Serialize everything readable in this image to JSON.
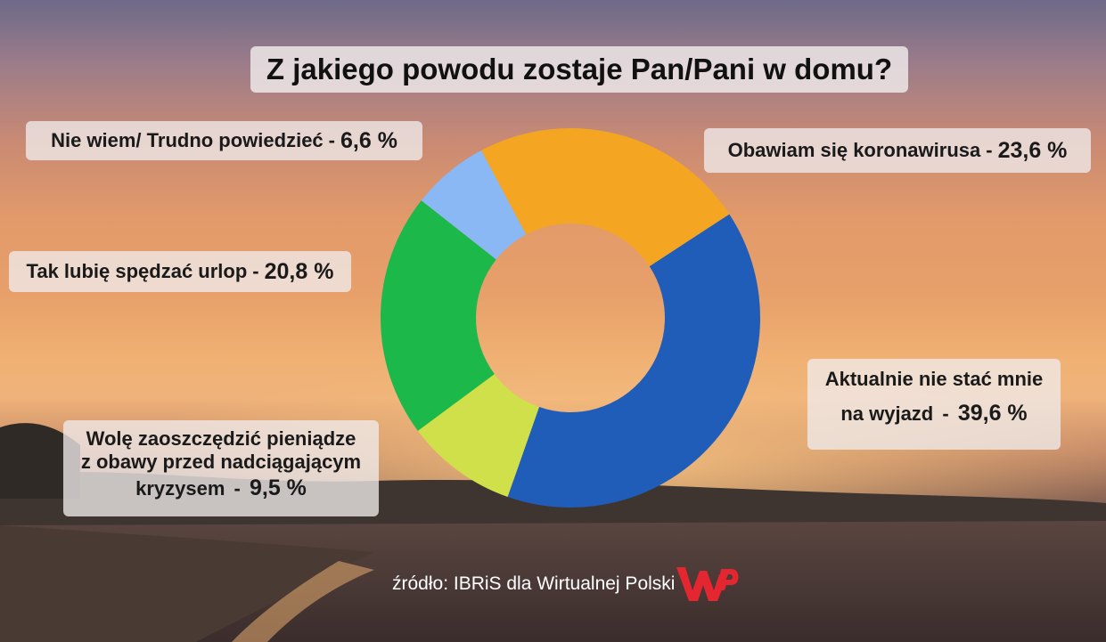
{
  "title": "Z jakiego powodu zostaje Pan/Pani w domu?",
  "source": "źródło: IBRiS dla Wirtualnej Polski",
  "logo_text": "WP",
  "colors": {
    "logo": "#e3262f"
  },
  "chart_data": {
    "type": "pie",
    "title": "Z jakiego powodu zostaje Pan/Pani w domu?",
    "series": [
      {
        "name": "",
        "slices": [
          {
            "label_lines": [
              "Obawiam się koronawirusa"
            ],
            "value_text": "23,6 %",
            "value": 23.6,
            "color": "#f4a623"
          },
          {
            "label_lines": [
              "Aktualnie nie stać mnie",
              "na wyjazd"
            ],
            "value_text": "39,6 %",
            "value": 39.6,
            "color": "#1f5db8"
          },
          {
            "label_lines": [
              "Wolę zaoszczędzić pieniądze",
              "z obawy przed nadciągającym",
              "kryzysem"
            ],
            "value_text": "9,5 %",
            "value": 9.5,
            "color": "#cfe04a"
          },
          {
            "label_lines": [
              "Tak lubię spędzać urlop"
            ],
            "value_text": "20,8 %",
            "value": 20.8,
            "color": "#1cb84a"
          },
          {
            "label_lines": [
              "Nie wiem/ Trudno powiedzieć"
            ],
            "value_text": "6,6 %",
            "value": 6.6,
            "color": "#8ab8f5"
          }
        ]
      }
    ],
    "start_angle_deg": -28
  }
}
